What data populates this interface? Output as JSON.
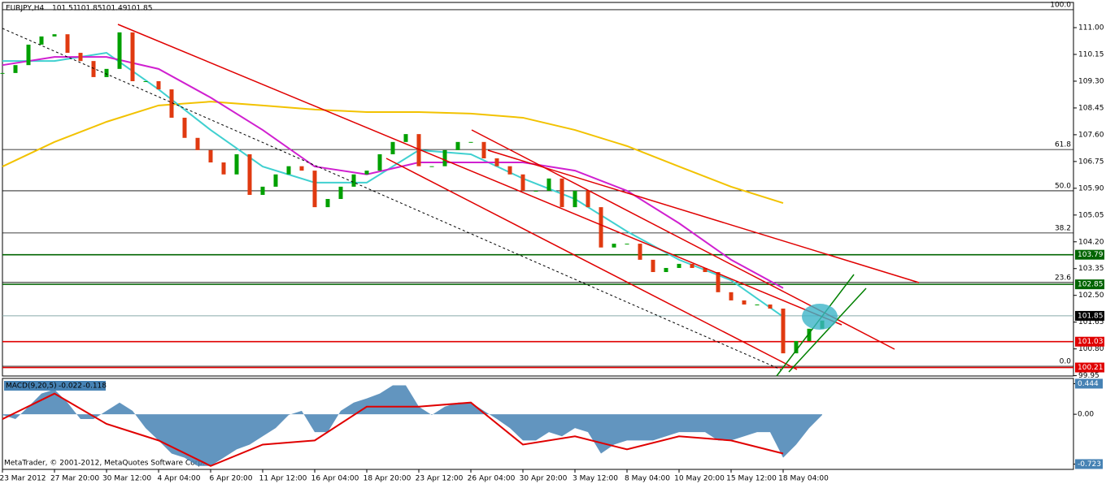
{
  "chart_data": {
    "type": "candlestick",
    "symbol": "EURJPY,H4",
    "quote": [
      101.51,
      101.85,
      101.49,
      101.85
    ],
    "footer": "MetaTrader, © 2001-2012, MetaQuotes Software Corp.",
    "ylim": [
      99.94,
      111.8
    ],
    "yticks": [
      {
        "value": 111,
        "label": "111.00"
      },
      {
        "value": 110.15,
        "label": "110.15"
      },
      {
        "value": 109.3,
        "label": "109.30"
      },
      {
        "value": 108.45,
        "label": "108.45"
      },
      {
        "value": 107.6,
        "label": "107.60"
      },
      {
        "value": 106.75,
        "label": "106.75"
      },
      {
        "value": 105.9,
        "label": "105.90"
      },
      {
        "value": 105.05,
        "label": "105.05"
      },
      {
        "value": 104.2,
        "label": "104.20"
      },
      {
        "value": 103.35,
        "label": "103.35"
      },
      {
        "value": 102.5,
        "label": "102.50"
      },
      {
        "value": 101.65,
        "label": "101.65"
      },
      {
        "value": 100.8,
        "label": "100.80"
      },
      {
        "value": 99.95,
        "label": "99.95"
      }
    ],
    "xlabels": [
      "23 Mar 2012",
      "27 Mar 20:00",
      "30 Mar 12:00",
      "4 Apr 04:00",
      "6 Apr 20:00",
      "11 Apr 12:00",
      "16 Apr 04:00",
      "18 Apr 20:00",
      "23 Apr 12:00",
      "26 Apr 04:00",
      "30 Apr 20:00",
      "3 May 12:00",
      "8 May 04:00",
      "10 May 20:00",
      "15 May 12:00",
      "18 May 04:00"
    ],
    "close": [
      109.56,
      109.81,
      110.46,
      110.72,
      110.79,
      110.2,
      109.94,
      109.43,
      109.69,
      110.85,
      109.3,
      109.3,
      109.04,
      108.14,
      107.5,
      107.11,
      106.72,
      106.34,
      106.98,
      105.69,
      105.95,
      106.34,
      106.6,
      106.46,
      105.3,
      105.56,
      105.95,
      106.34,
      106.46,
      106.98,
      107.37,
      107.62,
      106.6,
      106.6,
      107.11,
      107.37,
      107.37,
      106.85,
      106.6,
      106.34,
      105.82,
      105.82,
      106.21,
      105.3,
      105.82,
      105.3,
      104.02,
      104.14,
      104.14,
      103.63,
      103.24,
      103.37,
      103.5,
      103.37,
      103.24,
      102.6,
      102.34,
      102.21,
      102.21,
      102.08,
      100.66,
      101.05,
      101.44,
      101.7
    ],
    "up_color": "#00a000",
    "down_color": "#e03a10",
    "moving_averages": [
      {
        "color": "#f2c200",
        "values": [
          106.59,
          107.37,
          108.01,
          108.53,
          108.65,
          108.53,
          108.4,
          108.32,
          108.32,
          108.27,
          108.14,
          107.75,
          107.24,
          106.59,
          105.95,
          105.43
        ]
      },
      {
        "color": "#40d0d0",
        "values": [
          109.94,
          109.94,
          110.2,
          109.04,
          107.75,
          106.59,
          106.08,
          106.08,
          107.11,
          106.98,
          106.21,
          105.56,
          104.53,
          103.63,
          102.98,
          101.82
        ]
      },
      {
        "color": "#d020d0",
        "values": [
          109.81,
          110.07,
          110.07,
          109.69,
          108.78,
          107.75,
          106.59,
          106.34,
          106.72,
          106.72,
          106.72,
          106.46,
          105.82,
          104.79,
          103.63,
          102.73
        ]
      }
    ],
    "levels": [
      {
        "value": 103.79,
        "color": "#006400"
      },
      {
        "value": 102.85,
        "color": "#006400"
      },
      {
        "value": 101.85,
        "color": "#000000"
      },
      {
        "value": 101.03,
        "color": "#e00000"
      },
      {
        "value": 100.21,
        "color": "#e00000"
      }
    ],
    "fibo": [
      {
        "label": "100.0",
        "price": 111.57
      },
      {
        "label": "61.8",
        "price": 107.13
      },
      {
        "label": "50.0",
        "price": 105.82
      },
      {
        "label": "38.2",
        "price": 104.48
      },
      {
        "label": "23.6",
        "price": 102.91
      },
      {
        "label": "0.0",
        "price": 100.25
      }
    ],
    "macd": {
      "label": "MACD(9,20,5)",
      "readout": [
        -0.022,
        -0.118
      ],
      "ylim": [
        -0.8,
        0.52
      ],
      "yticks": [
        0.444,
        {
          "value": 0,
          "label": "0.00"
        },
        -0.723
      ],
      "hist_color": "#4682b4",
      "signal_color": "#e00000",
      "histogram": [
        -0.01,
        -0.07,
        0.11,
        0.3,
        0.36,
        0.17,
        -0.07,
        -0.07,
        0.05,
        0.17,
        0.05,
        -0.2,
        -0.38,
        -0.57,
        -0.63,
        -0.75,
        -0.75,
        -0.63,
        -0.51,
        -0.44,
        -0.32,
        -0.2,
        -0.01,
        0.05,
        -0.26,
        -0.26,
        0.05,
        0.17,
        0.23,
        0.3,
        0.42,
        0.42,
        0.11,
        -0.01,
        0.11,
        0.17,
        0.17,
        0.05,
        -0.07,
        -0.2,
        -0.38,
        -0.38,
        -0.26,
        -0.32,
        -0.2,
        -0.26,
        -0.57,
        -0.44,
        -0.38,
        -0.38,
        -0.38,
        -0.32,
        -0.26,
        -0.26,
        -0.26,
        -0.38,
        -0.38,
        -0.32,
        -0.26,
        -0.26,
        -0.63,
        -0.44,
        -0.2,
        -0.01
      ],
      "signal": [
        -0.07,
        0.3,
        -0.14,
        -0.38,
        -0.75,
        -0.44,
        -0.38,
        0.11,
        0.11,
        0.17,
        -0.44,
        -0.32,
        -0.51,
        -0.32,
        -0.38,
        -0.57
      ]
    }
  }
}
